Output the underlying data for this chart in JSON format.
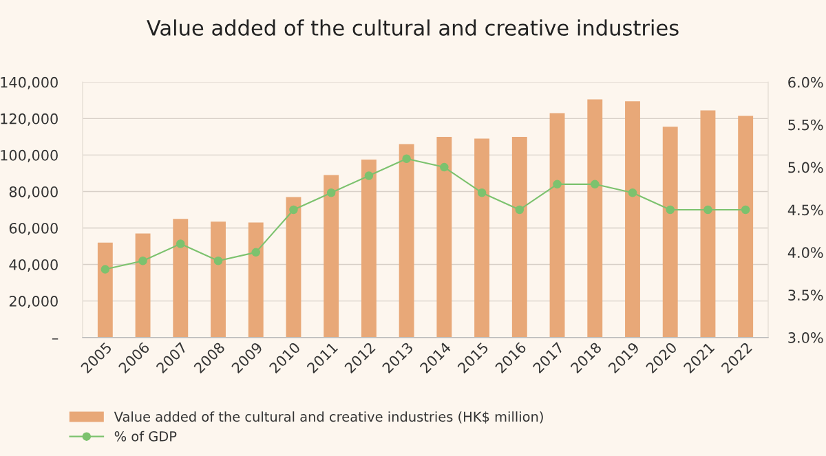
{
  "chart_data": {
    "type": "bar",
    "title": "Value added of the cultural and creative industries",
    "categories": [
      "2005",
      "2006",
      "2007",
      "2008",
      "2009",
      "2010",
      "2011",
      "2012",
      "2013",
      "2014",
      "2015",
      "2016",
      "2017",
      "2018",
      "2019",
      "2020",
      "2021",
      "2022"
    ],
    "series": [
      {
        "name": "Value added of the cultural and creative industries (HK$ million)",
        "color": "#e8a878",
        "values": [
          52000,
          57000,
          65000,
          63500,
          63000,
          77000,
          89000,
          97500,
          106000,
          110000,
          109000,
          110000,
          123000,
          130500,
          129500,
          115500,
          124500,
          121500
        ]
      },
      {
        "name": "% of GDP",
        "type": "line",
        "axis": "y2",
        "color": "#7cc26e",
        "values": [
          3.8,
          3.9,
          4.1,
          3.9,
          4.0,
          4.5,
          4.7,
          4.9,
          5.1,
          5.0,
          4.7,
          4.5,
          4.8,
          4.8,
          4.7,
          4.5,
          4.5,
          4.5
        ]
      }
    ],
    "ylim": [
      0,
      140000
    ],
    "yticks": [
      {
        "value": 0,
        "label": "–"
      },
      {
        "value": 20000,
        "label": "20,000"
      },
      {
        "value": 40000,
        "label": "40,000"
      },
      {
        "value": 60000,
        "label": "60,000"
      },
      {
        "value": 80000,
        "label": "80,000"
      },
      {
        "value": 100000,
        "label": "100,000"
      },
      {
        "value": 120000,
        "label": "120,000"
      },
      {
        "value": 140000,
        "label": "140,000"
      }
    ],
    "y2lim": [
      3.0,
      6.0
    ],
    "y2ticks": [
      {
        "value": 3.0,
        "label": "3.0%"
      },
      {
        "value": 3.5,
        "label": "3.5%"
      },
      {
        "value": 4.0,
        "label": "4.0%"
      },
      {
        "value": 4.5,
        "label": "4.5%"
      },
      {
        "value": 5.0,
        "label": "5.0%"
      },
      {
        "value": 5.5,
        "label": "5.5%"
      },
      {
        "value": 6.0,
        "label": "6.0%"
      }
    ],
    "grid": "y",
    "legend": "bottom",
    "marker": "circle",
    "line_style": "solid"
  }
}
